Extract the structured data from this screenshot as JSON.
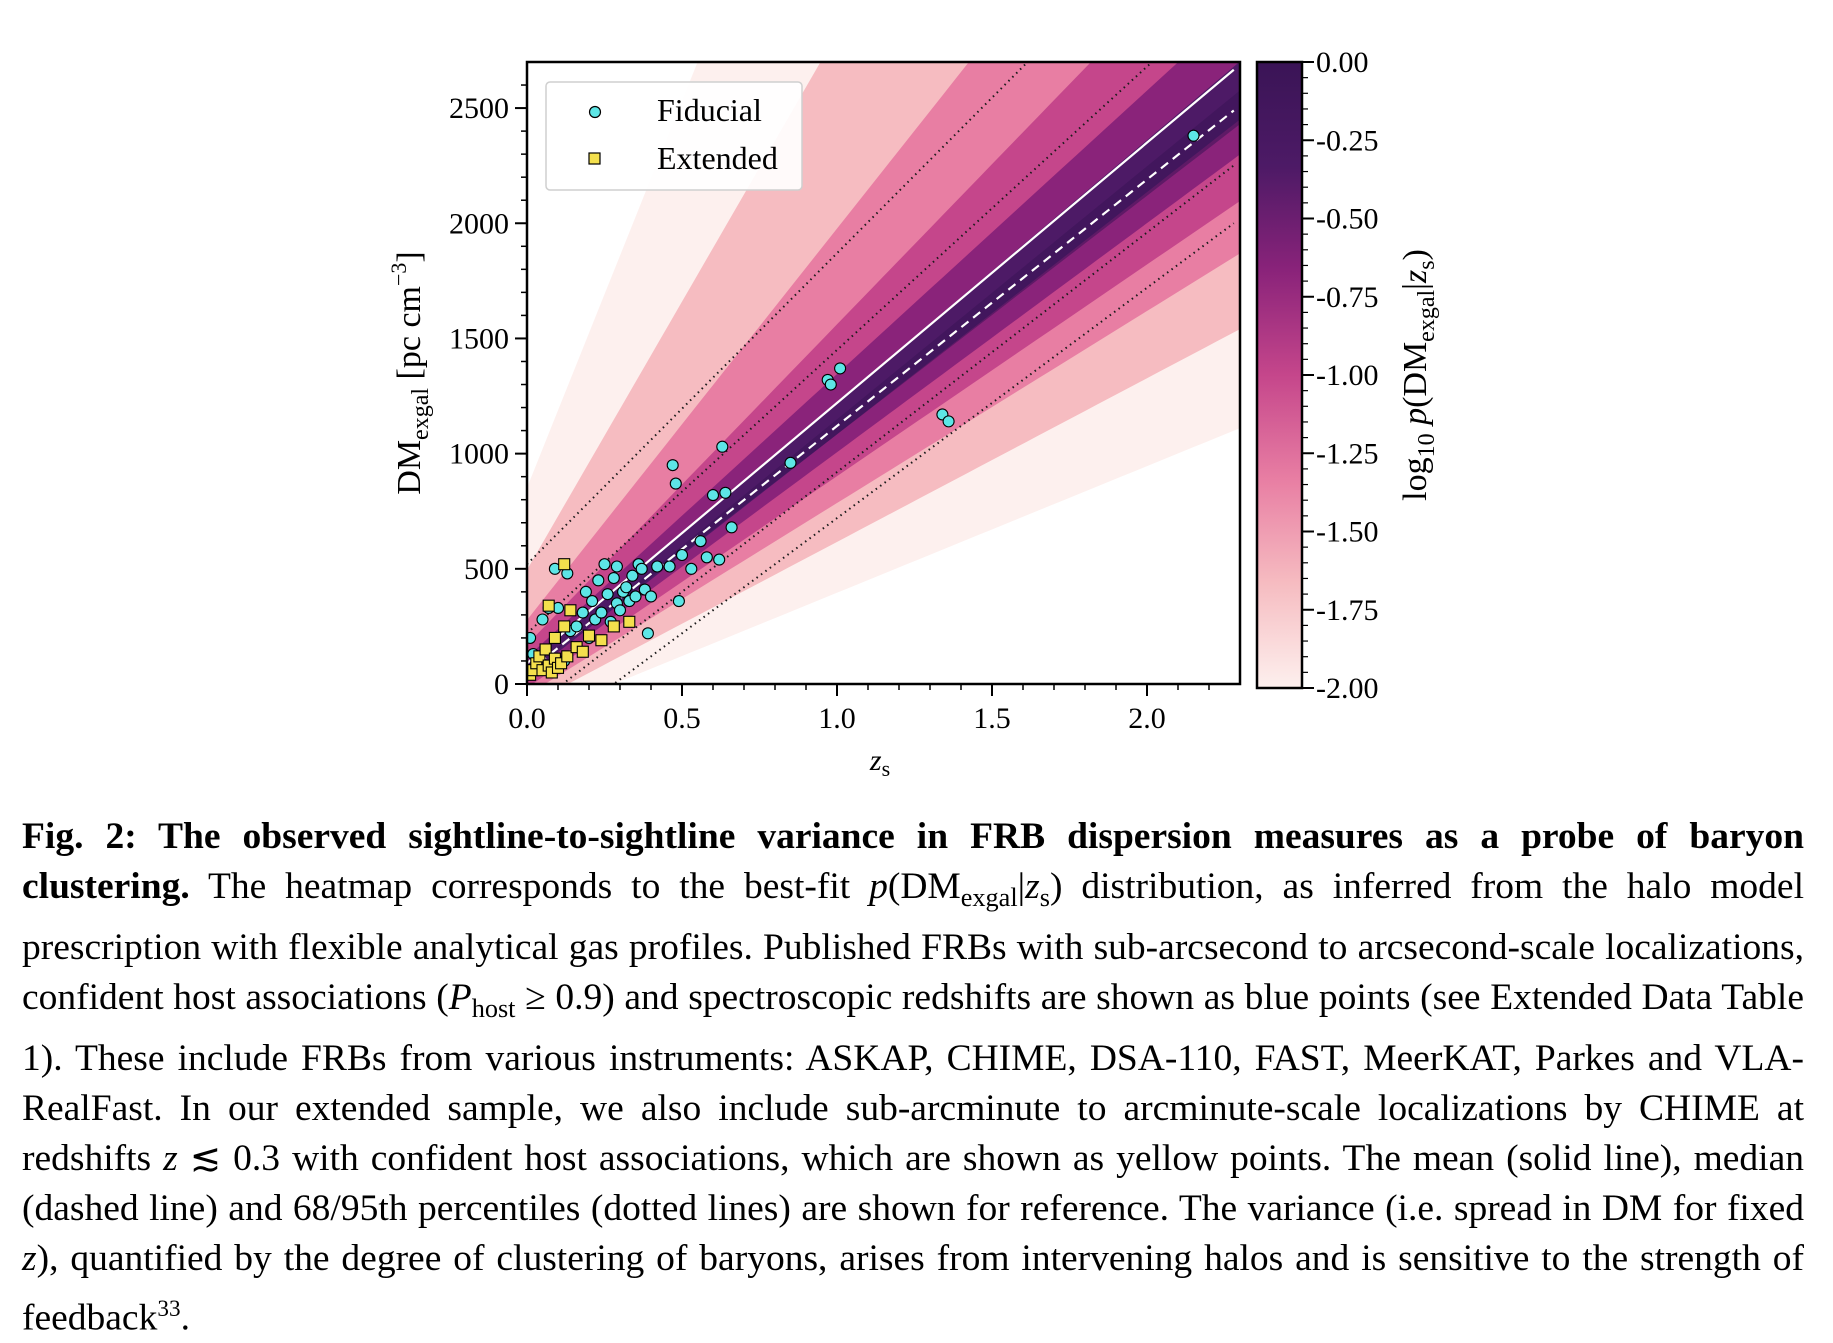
{
  "chart_data": {
    "type": "scatter",
    "xlabel": "z",
    "xlabel_sub": "s",
    "ylabel": "DM",
    "ylabel_sub": "exgal",
    "ylabel_unit": "[pc cm",
    "ylabel_unit_sup": "−3",
    "ylabel_unit_close": "]",
    "xlim": [
      0.0,
      2.3
    ],
    "ylim": [
      0,
      2700
    ],
    "x_ticks": [
      "0.0",
      "0.5",
      "1.0",
      "1.5",
      "2.0"
    ],
    "y_ticks": [
      "0",
      "500",
      "1000",
      "1500",
      "2000",
      "2500"
    ],
    "legend": {
      "placement": "top-left",
      "entries": [
        "Fiducial",
        "Extended"
      ]
    },
    "colorbar": {
      "label_prefix": "log",
      "label_sub": "10",
      "label_expr": "p(DM",
      "label_expr_sub": "exgal",
      "label_expr_tail": "|z",
      "label_expr_tail_sub": "s",
      "label_close": ")",
      "ticks": [
        "0.00",
        "-0.25",
        "-0.50",
        "-0.75",
        "-1.00",
        "-1.25",
        "-1.50",
        "-1.75",
        "-2.00"
      ],
      "range": [
        -2.0,
        0.0
      ],
      "colors": [
        "#fdf0ee",
        "#f6bcc1",
        "#e87ea3",
        "#c5468b",
        "#8a237a",
        "#4d1a66",
        "#3a1456"
      ]
    },
    "reference_lines": {
      "mean_slope": 1130,
      "mean_intercept": 90,
      "median_slope": 1070,
      "median_intercept": 50,
      "percentiles": [
        {
          "slope": 1350,
          "intercept": 520
        },
        {
          "slope": 1230,
          "intercept": 220
        },
        {
          "slope": 1040,
          "intercept": -120
        },
        {
          "slope": 1000,
          "intercept": -280
        }
      ],
      "style_mean": "solid",
      "style_median": "dashed",
      "style_percentiles": "dotted",
      "color_mean": "#ffffff",
      "color_percentiles": "#1a1a1a"
    },
    "series": [
      {
        "name": "Fiducial",
        "marker": "circle",
        "color": "#5de6e6",
        "points": [
          [
            0.01,
            200
          ],
          [
            0.02,
            130
          ],
          [
            0.03,
            70
          ],
          [
            0.05,
            280
          ],
          [
            0.07,
            330
          ],
          [
            0.09,
            500
          ],
          [
            0.1,
            330
          ],
          [
            0.12,
            100
          ],
          [
            0.13,
            480
          ],
          [
            0.14,
            230
          ],
          [
            0.16,
            250
          ],
          [
            0.18,
            310
          ],
          [
            0.19,
            400
          ],
          [
            0.2,
            200
          ],
          [
            0.21,
            360
          ],
          [
            0.22,
            280
          ],
          [
            0.23,
            450
          ],
          [
            0.24,
            310
          ],
          [
            0.25,
            520
          ],
          [
            0.26,
            390
          ],
          [
            0.27,
            270
          ],
          [
            0.28,
            460
          ],
          [
            0.29,
            350
          ],
          [
            0.29,
            510
          ],
          [
            0.3,
            320
          ],
          [
            0.31,
            400
          ],
          [
            0.32,
            420
          ],
          [
            0.33,
            360
          ],
          [
            0.34,
            470
          ],
          [
            0.35,
            380
          ],
          [
            0.36,
            520
          ],
          [
            0.37,
            500
          ],
          [
            0.38,
            410
          ],
          [
            0.39,
            220
          ],
          [
            0.4,
            380
          ],
          [
            0.42,
            510
          ],
          [
            0.46,
            510
          ],
          [
            0.47,
            950
          ],
          [
            0.48,
            870
          ],
          [
            0.49,
            360
          ],
          [
            0.5,
            560
          ],
          [
            0.53,
            500
          ],
          [
            0.56,
            620
          ],
          [
            0.58,
            550
          ],
          [
            0.6,
            820
          ],
          [
            0.62,
            540
          ],
          [
            0.63,
            1030
          ],
          [
            0.64,
            830
          ],
          [
            0.66,
            680
          ],
          [
            0.85,
            960
          ],
          [
            0.97,
            1320
          ],
          [
            0.98,
            1300
          ],
          [
            1.01,
            1370
          ],
          [
            1.34,
            1170
          ],
          [
            1.36,
            1140
          ],
          [
            2.15,
            2380
          ]
        ]
      },
      {
        "name": "Extended",
        "marker": "square",
        "color": "#f4e04d",
        "points": [
          [
            0.01,
            40
          ],
          [
            0.02,
            60
          ],
          [
            0.03,
            90
          ],
          [
            0.04,
            120
          ],
          [
            0.05,
            60
          ],
          [
            0.06,
            150
          ],
          [
            0.07,
            80
          ],
          [
            0.07,
            340
          ],
          [
            0.08,
            50
          ],
          [
            0.09,
            110
          ],
          [
            0.09,
            200
          ],
          [
            0.1,
            70
          ],
          [
            0.11,
            90
          ],
          [
            0.12,
            250
          ],
          [
            0.12,
            520
          ],
          [
            0.13,
            120
          ],
          [
            0.14,
            320
          ],
          [
            0.16,
            160
          ],
          [
            0.18,
            140
          ],
          [
            0.2,
            210
          ],
          [
            0.24,
            190
          ],
          [
            0.28,
            250
          ],
          [
            0.33,
            270
          ]
        ]
      }
    ]
  },
  "caption": {
    "label": "Fig. 2: The observed sightline-to-sightline variance in FRB dispersion measures as a probe of baryon clustering.",
    "seg1": "The heatmap corresponds to the best-fit ",
    "eq1_p": "p",
    "eq1_open": "(DM",
    "eq1_sub": "exgal",
    "eq1_bar": "|",
    "eq1_z": "z",
    "eq1_zsub": "s",
    "eq1_close": ")",
    "seg2": " distribution, as inferred from the halo model prescription with flexible analytical gas profiles. Published FRBs with sub-arcsecond to arcsecond-scale localizations, confident host associations (",
    "eq2_p": "P",
    "eq2_sub": "host",
    "eq2_rel": " ≥ 0.9",
    "seg3": ") and spectroscopic redshifts are shown as blue points (see Extended Data Table 1). These include FRBs from various instruments: ASKAP, CHIME, DSA-110, FAST, MeerKAT, Parkes and VLA-RealFast. In our extended sample, we also include sub-arcminute to arcminute-scale localizations by CHIME at redshifts ",
    "eq3_z": "z",
    "eq3_rel": " ≲ 0.3",
    "seg4": " with confident host associations, which are shown as yellow points. The mean (solid line), median (dashed line) and 68/95th percentiles (dotted lines) are shown for reference. The variance (i.e. spread in DM for fixed ",
    "eq4_z": "z",
    "seg5": "), quantified by the degree of clustering of baryons, arises from intervening halos and is sensitive to the strength of feedback",
    "ref": "33",
    "seg6": "."
  }
}
